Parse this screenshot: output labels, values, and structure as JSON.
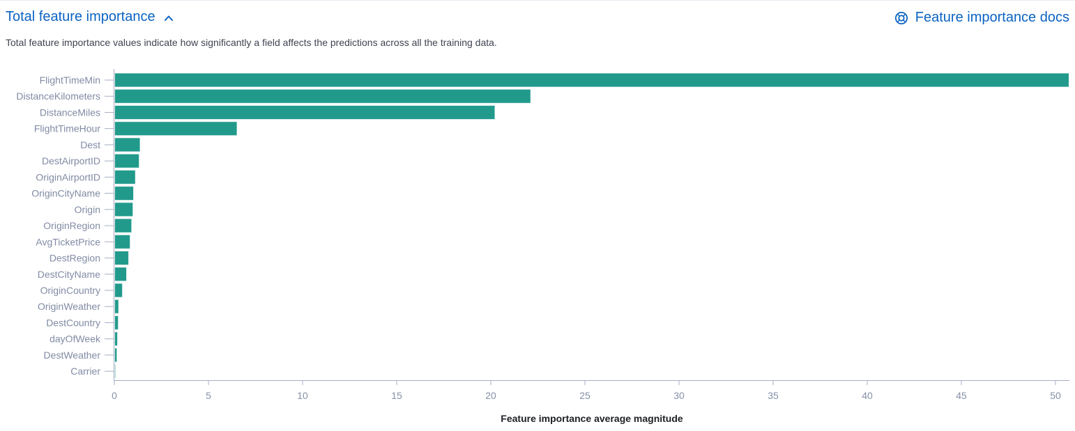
{
  "header": {
    "title": "Total feature importance",
    "docs_link": "Feature importance docs"
  },
  "description": "Total feature importance values indicate how significantly a field affects the predictions across all the training data.",
  "colors": {
    "link_blue": "#0b63c2",
    "bar_fill": "#219a8c",
    "bar_stroke": "rgba(255,255,255,0.7)",
    "axis_line": "#a6adc4",
    "tick_text": "#8690a8",
    "category_text": "#818ba4",
    "axis_title_text": "#1d1f24"
  },
  "chart_data": {
    "type": "bar",
    "orientation": "horizontal",
    "title": "",
    "categories": [
      "FlightTimeMin",
      "DistanceKilometers",
      "DistanceMiles",
      "FlightTimeHour",
      "Dest",
      "DestAirportID",
      "OriginAirportID",
      "OriginCityName",
      "Origin",
      "OriginRegion",
      "AvgTicketPrice",
      "DestRegion",
      "DestCityName",
      "OriginCountry",
      "OriginWeather",
      "DestCountry",
      "dayOfWeek",
      "DestWeather",
      "Carrier"
    ],
    "values": [
      50.7,
      22.1,
      20.2,
      6.5,
      1.35,
      1.3,
      1.1,
      1.0,
      0.97,
      0.9,
      0.82,
      0.74,
      0.63,
      0.41,
      0.21,
      0.19,
      0.15,
      0.12,
      0.04
    ],
    "xlabel": "Feature importance average magnitude",
    "ylabel": "",
    "x_ticks": [
      0,
      5,
      10,
      15,
      20,
      25,
      30,
      35,
      40,
      45,
      50
    ],
    "xlim": [
      0,
      50.7
    ],
    "grid": false,
    "legend": false
  }
}
